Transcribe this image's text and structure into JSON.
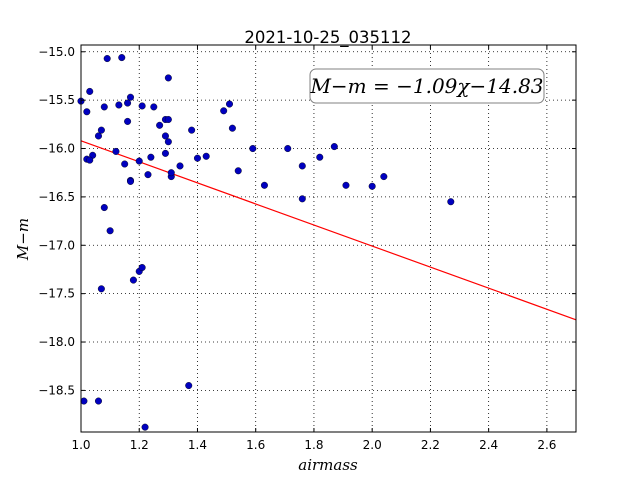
{
  "chart_data": {
    "type": "scatter",
    "title": "2021-10-25_035112",
    "xlabel": "airmass",
    "ylabel": "M−m",
    "xlim": [
      1.0,
      2.7
    ],
    "ylim": [
      -18.93,
      -14.93
    ],
    "y_inverted": true,
    "grid": true,
    "x_ticks": [
      1.0,
      1.2,
      1.4,
      1.6,
      1.8,
      2.0,
      2.2,
      2.4,
      2.6
    ],
    "x_tick_labels": [
      "1.0",
      "1.2",
      "1.4",
      "1.6",
      "1.8",
      "2.0",
      "2.2",
      "2.4",
      "2.6"
    ],
    "y_ticks": [
      -15.0,
      -15.5,
      -16.0,
      -16.5,
      -17.0,
      -17.5,
      -18.0,
      -18.5
    ],
    "y_tick_labels": [
      "−15.0",
      "−15.5",
      "−16.0",
      "−16.5",
      "−17.0",
      "−17.5",
      "−18.0",
      "−18.5"
    ],
    "annotation": "M−m = −1.09χ−14.83",
    "series": [
      {
        "kind": "points",
        "color": "#0000bf",
        "x": [
          1.0,
          1.02,
          1.03,
          1.02,
          1.04,
          1.03,
          1.06,
          1.07,
          1.08,
          1.09,
          1.08,
          1.1,
          1.07,
          1.06,
          1.01,
          1.12,
          1.13,
          1.14,
          1.15,
          1.17,
          1.16,
          1.16,
          1.17,
          1.17,
          1.2,
          1.21,
          1.2,
          1.21,
          1.23,
          1.24,
          1.25,
          1.27,
          1.29,
          1.3,
          1.3,
          1.31,
          1.31,
          1.29,
          1.29,
          1.3,
          1.34,
          1.22,
          1.18,
          1.38,
          1.37,
          1.4,
          1.43,
          1.49,
          1.51,
          1.52,
          1.54,
          1.59,
          1.63,
          1.71,
          1.76,
          1.76,
          1.82,
          1.87,
          1.91,
          2.0,
          2.04,
          2.27
        ],
        "y": [
          -15.51,
          -15.62,
          -15.41,
          -16.11,
          -16.07,
          -16.12,
          -15.87,
          -15.81,
          -15.57,
          -15.07,
          -16.61,
          -16.85,
          -17.45,
          -18.61,
          -18.61,
          -16.03,
          -15.55,
          -15.06,
          -16.16,
          -15.47,
          -15.53,
          -15.72,
          -16.33,
          -16.34,
          -16.13,
          -15.56,
          -17.27,
          -17.23,
          -16.27,
          -16.09,
          -15.57,
          -15.76,
          -15.7,
          -15.27,
          -15.7,
          -16.29,
          -16.25,
          -15.87,
          -16.05,
          -15.93,
          -16.18,
          -18.88,
          -17.36,
          -15.81,
          -18.45,
          -16.1,
          -16.08,
          -15.61,
          -15.54,
          -15.79,
          -16.23,
          -16.0,
          -16.38,
          -16.0,
          -16.18,
          -16.52,
          -16.09,
          -15.98,
          -16.38,
          -16.39,
          -16.29,
          -16.55
        ]
      },
      {
        "kind": "fit-line",
        "color": "#ff0000",
        "x": [
          1.0,
          2.7
        ],
        "y": [
          -15.92,
          -17.77
        ]
      }
    ]
  }
}
